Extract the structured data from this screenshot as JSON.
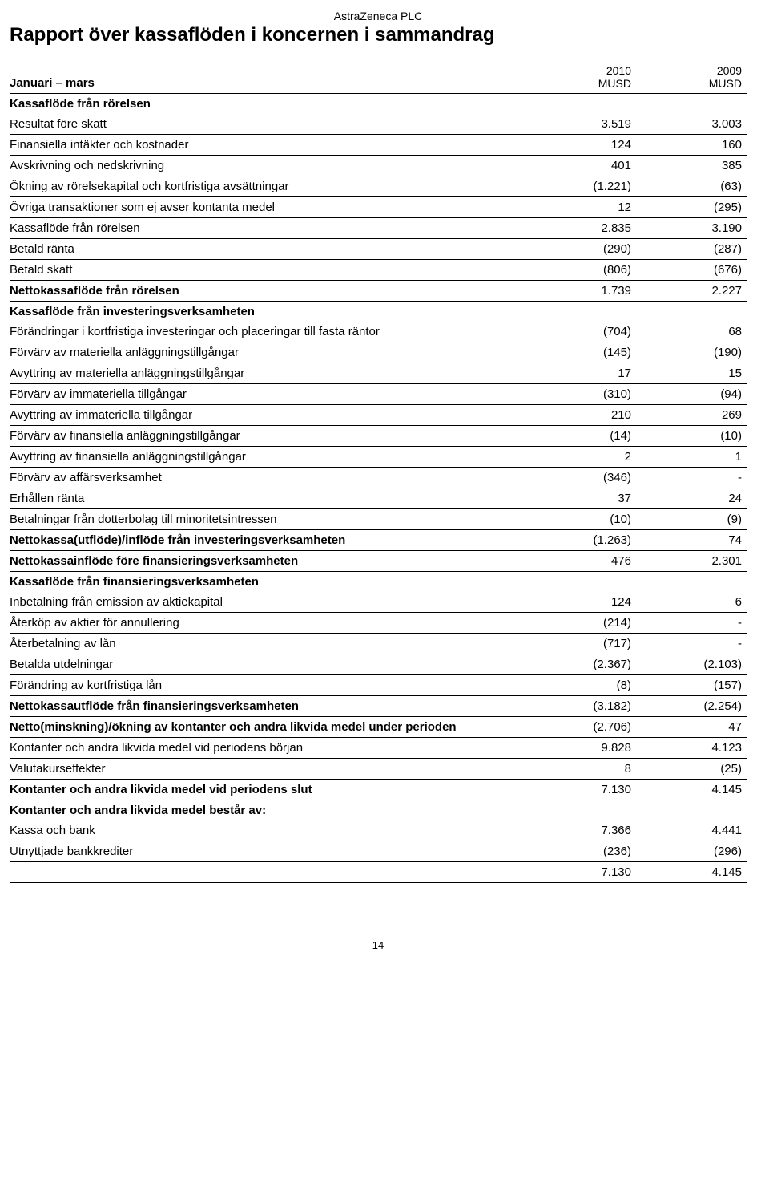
{
  "company": "AstraZeneca PLC",
  "title": "Rapport över kassaflöden i koncernen i sammandrag",
  "period_label": "Januari – mars",
  "col1_year": "2010",
  "col2_year": "2009",
  "unit": "MUSD",
  "page_number": "14",
  "sections": {
    "s1": {
      "head": "Kassaflöde från rörelsen"
    },
    "s2": {
      "head": "Kassaflöde från investeringsverksamheten"
    },
    "s3": {
      "head": "Kassaflöde från finansieringsverksamheten"
    },
    "s4": {
      "head": "Kontanter och andra likvida medel består av:"
    }
  },
  "rows": {
    "r01": {
      "label": "Resultat före skatt",
      "v1": "3.519",
      "v2": "3.003"
    },
    "r02": {
      "label": "Finansiella intäkter och kostnader",
      "v1": "124",
      "v2": "160"
    },
    "r03": {
      "label": "Avskrivning och nedskrivning",
      "v1": "401",
      "v2": "385"
    },
    "r04": {
      "label": "Ökning av rörelsekapital och kortfristiga avsättningar",
      "v1": "(1.221)",
      "v2": "(63)"
    },
    "r05": {
      "label": "Övriga transaktioner som ej avser kontanta medel",
      "v1": "12",
      "v2": "(295)"
    },
    "r06": {
      "label": "Kassaflöde från rörelsen",
      "v1": "2.835",
      "v2": "3.190"
    },
    "r07": {
      "label": "Betald ränta",
      "v1": "(290)",
      "v2": "(287)"
    },
    "r08": {
      "label": "Betald skatt",
      "v1": "(806)",
      "v2": "(676)"
    },
    "r09": {
      "label": "Nettokassaflöde från rörelsen",
      "v1": "1.739",
      "v2": "2.227"
    },
    "r10": {
      "label": "Förändringar i kortfristiga investeringar och placeringar till fasta räntor",
      "v1": "(704)",
      "v2": "68"
    },
    "r11": {
      "label": "Förvärv av materiella anläggningstillgångar",
      "v1": "(145)",
      "v2": "(190)"
    },
    "r12": {
      "label": "Avyttring av materiella anläggningstillgångar",
      "v1": "17",
      "v2": "15"
    },
    "r13": {
      "label": "Förvärv av immateriella tillgångar",
      "v1": "(310)",
      "v2": "(94)"
    },
    "r14": {
      "label": "Avyttring av immateriella tillgångar",
      "v1": "210",
      "v2": "269"
    },
    "r15": {
      "label": "Förvärv av finansiella anläggningstillgångar",
      "v1": "(14)",
      "v2": "(10)"
    },
    "r16": {
      "label": "Avyttring av finansiella anläggningstillgångar",
      "v1": "2",
      "v2": "1"
    },
    "r17": {
      "label": "Förvärv av affärsverksamhet",
      "v1": "(346)",
      "v2": "-"
    },
    "r18": {
      "label": "Erhållen ränta",
      "v1": "37",
      "v2": "24"
    },
    "r19": {
      "label": "Betalningar från dotterbolag till minoritetsintressen",
      "v1": "(10)",
      "v2": "(9)"
    },
    "r20": {
      "label": "Nettokassa(utflöde)/inflöde från investeringsverksamheten",
      "v1": "(1.263)",
      "v2": "74"
    },
    "r21": {
      "label": "Nettokassainflöde före finansieringsverksamheten",
      "v1": "476",
      "v2": "2.301"
    },
    "r22": {
      "label": "Inbetalning från emission av aktiekapital",
      "v1": "124",
      "v2": "6"
    },
    "r23": {
      "label": "Återköp av aktier för annullering",
      "v1": "(214)",
      "v2": "-"
    },
    "r24": {
      "label": "Återbetalning av lån",
      "v1": "(717)",
      "v2": "-"
    },
    "r25": {
      "label": "Betalda utdelningar",
      "v1": "(2.367)",
      "v2": "(2.103)"
    },
    "r26": {
      "label": "Förändring av kortfristiga lån",
      "v1": "(8)",
      "v2": "(157)"
    },
    "r27": {
      "label": "Nettokassautflöde från finansieringsverksamheten",
      "v1": "(3.182)",
      "v2": "(2.254)"
    },
    "r28": {
      "label": "Netto(minskning)/ökning av kontanter och andra likvida medel under perioden",
      "v1": "(2.706)",
      "v2": "47"
    },
    "r29": {
      "label": "Kontanter och andra likvida medel vid periodens början",
      "v1": "9.828",
      "v2": "4.123"
    },
    "r30": {
      "label": "Valutakurseffekter",
      "v1": "8",
      "v2": "(25)"
    },
    "r31": {
      "label": "Kontanter och andra likvida medel vid periodens slut",
      "v1": "7.130",
      "v2": "4.145"
    },
    "r32": {
      "label": "Kassa och bank",
      "v1": "7.366",
      "v2": "4.441"
    },
    "r33": {
      "label": "Utnyttjade bankkrediter",
      "v1": "(236)",
      "v2": "(296)"
    },
    "r34": {
      "label": "",
      "v1": "7.130",
      "v2": "4.145"
    }
  }
}
